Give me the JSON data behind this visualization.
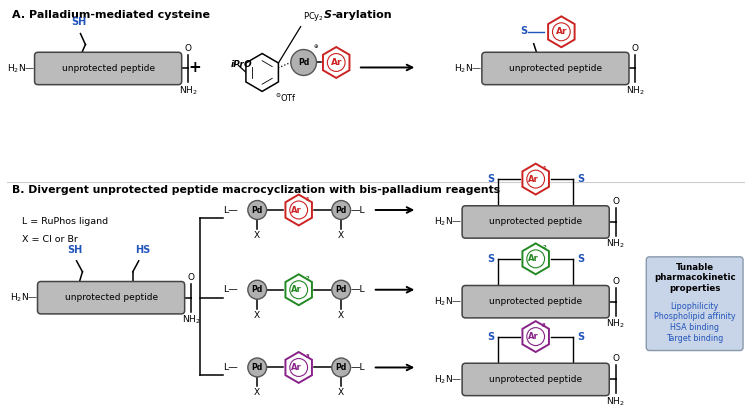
{
  "title_A": "A. Palladium-mediated cysteine Ṡ-arylation",
  "title_B": "B. Divergent unprotected peptide macrocyclization with bis-palladium reagents",
  "peptide_label": "unprotected peptide",
  "color_SH": "#2255bb",
  "color_Ar_red": "#cc2222",
  "color_Ar_green": "#228822",
  "color_Ar_purple": "#882288",
  "color_S": "#2255bb",
  "color_Pd": "#b0b0b0",
  "color_peptide_fill": "#bbbbbb",
  "color_peptide_stroke": "#444444",
  "color_box_fill": "#c8d4e8",
  "color_box_stroke": "#8899aa",
  "tunable_title": "Tunable\npharmacokinetic\nproperties",
  "tunable_items": [
    "Lipophilicity",
    "Phospholipid affinity",
    "HSA binding",
    "Target binding"
  ],
  "tunable_item_colors": [
    "#2255bb",
    "#2255bb",
    "#2255bb",
    "#2255bb"
  ],
  "bg_color": "#ffffff"
}
